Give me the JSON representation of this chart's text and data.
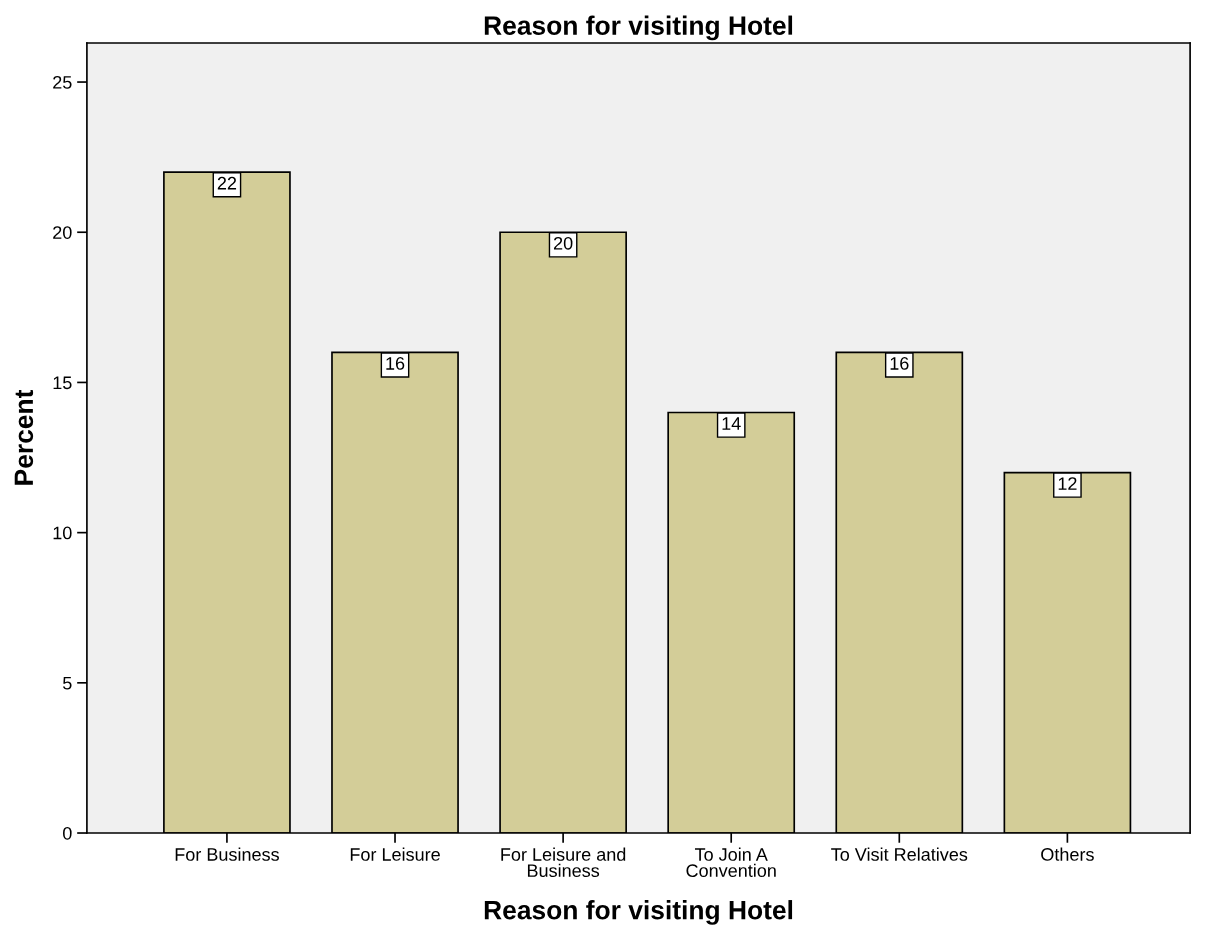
{
  "chart_data": {
    "type": "bar",
    "title": "Reason for visiting Hotel",
    "xlabel": "Reason for visiting Hotel",
    "ylabel": "Percent",
    "categories": [
      "For Business",
      "For Leisure",
      "For Leisure and\nBusiness",
      "To Join A\nConvention",
      "To Visit Relatives",
      "Others"
    ],
    "values": [
      22,
      16,
      20,
      14,
      16,
      12
    ],
    "color": "#d3cd98",
    "data_labels": true,
    "ylim": [
      0,
      26.3
    ],
    "yticks": [
      0,
      5,
      10,
      15,
      20,
      25
    ],
    "grid": false,
    "legend": false
  }
}
